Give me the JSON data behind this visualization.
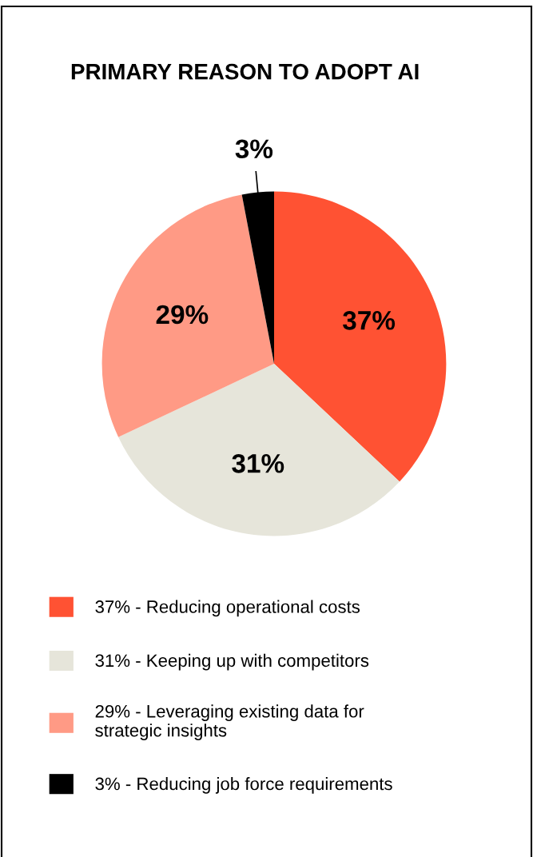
{
  "chart_data": {
    "type": "pie",
    "title": "PRIMARY REASON TO ADOPT AI",
    "categories": [
      "Reducing operational costs",
      "Keeping up with competitors",
      "Leveraging existing data for strategic insights",
      "Reducing job force requirements"
    ],
    "values": [
      37,
      31,
      29,
      3
    ],
    "value_labels": [
      "37%",
      "31%",
      "29%",
      "3%"
    ],
    "colors": [
      "#ff5233",
      "#e6e5da",
      "#ff9a85",
      "#000000"
    ],
    "legend": "bottom"
  }
}
